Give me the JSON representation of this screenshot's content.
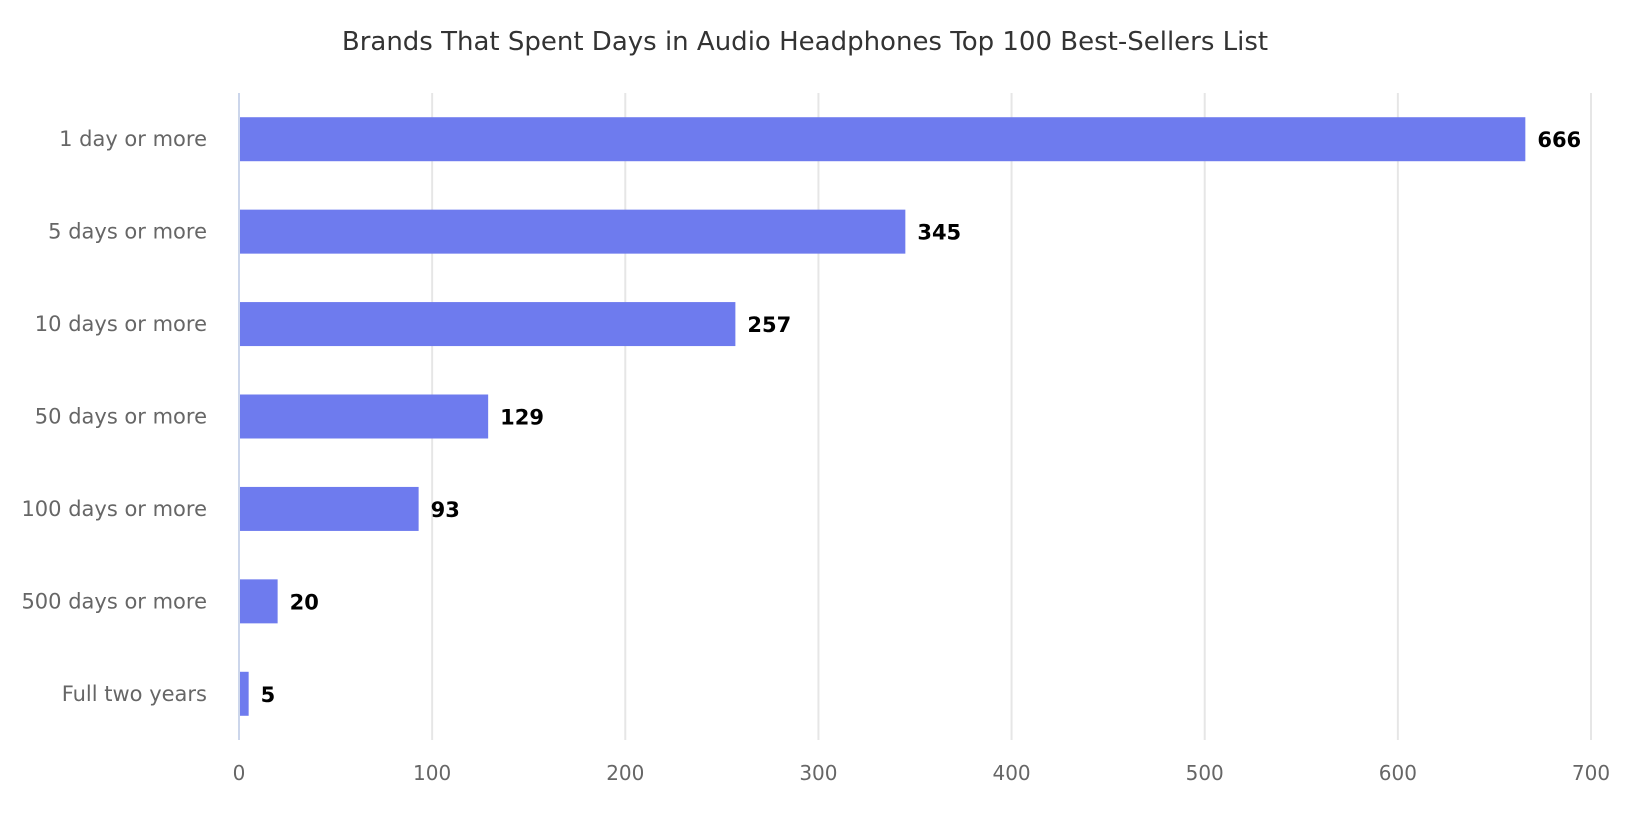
{
  "chart_data": {
    "type": "bar",
    "orientation": "horizontal",
    "title": "Brands That Spent Days in Audio Headphones Top 100 Best-Sellers List",
    "categories": [
      "1 day or more",
      "5 days or more",
      "10 days or more",
      "50 days or more",
      "100 days or more",
      "500 days or more",
      "Full two years"
    ],
    "values": [
      666,
      345,
      257,
      129,
      93,
      20,
      5
    ],
    "xlim": [
      0,
      700
    ],
    "xticks": [
      0,
      100,
      200,
      300,
      400,
      500,
      600,
      700
    ],
    "xlabel": "",
    "ylabel": "",
    "grid": true,
    "legend": false,
    "bar_color": "#6e7bee",
    "data_labels": true
  }
}
